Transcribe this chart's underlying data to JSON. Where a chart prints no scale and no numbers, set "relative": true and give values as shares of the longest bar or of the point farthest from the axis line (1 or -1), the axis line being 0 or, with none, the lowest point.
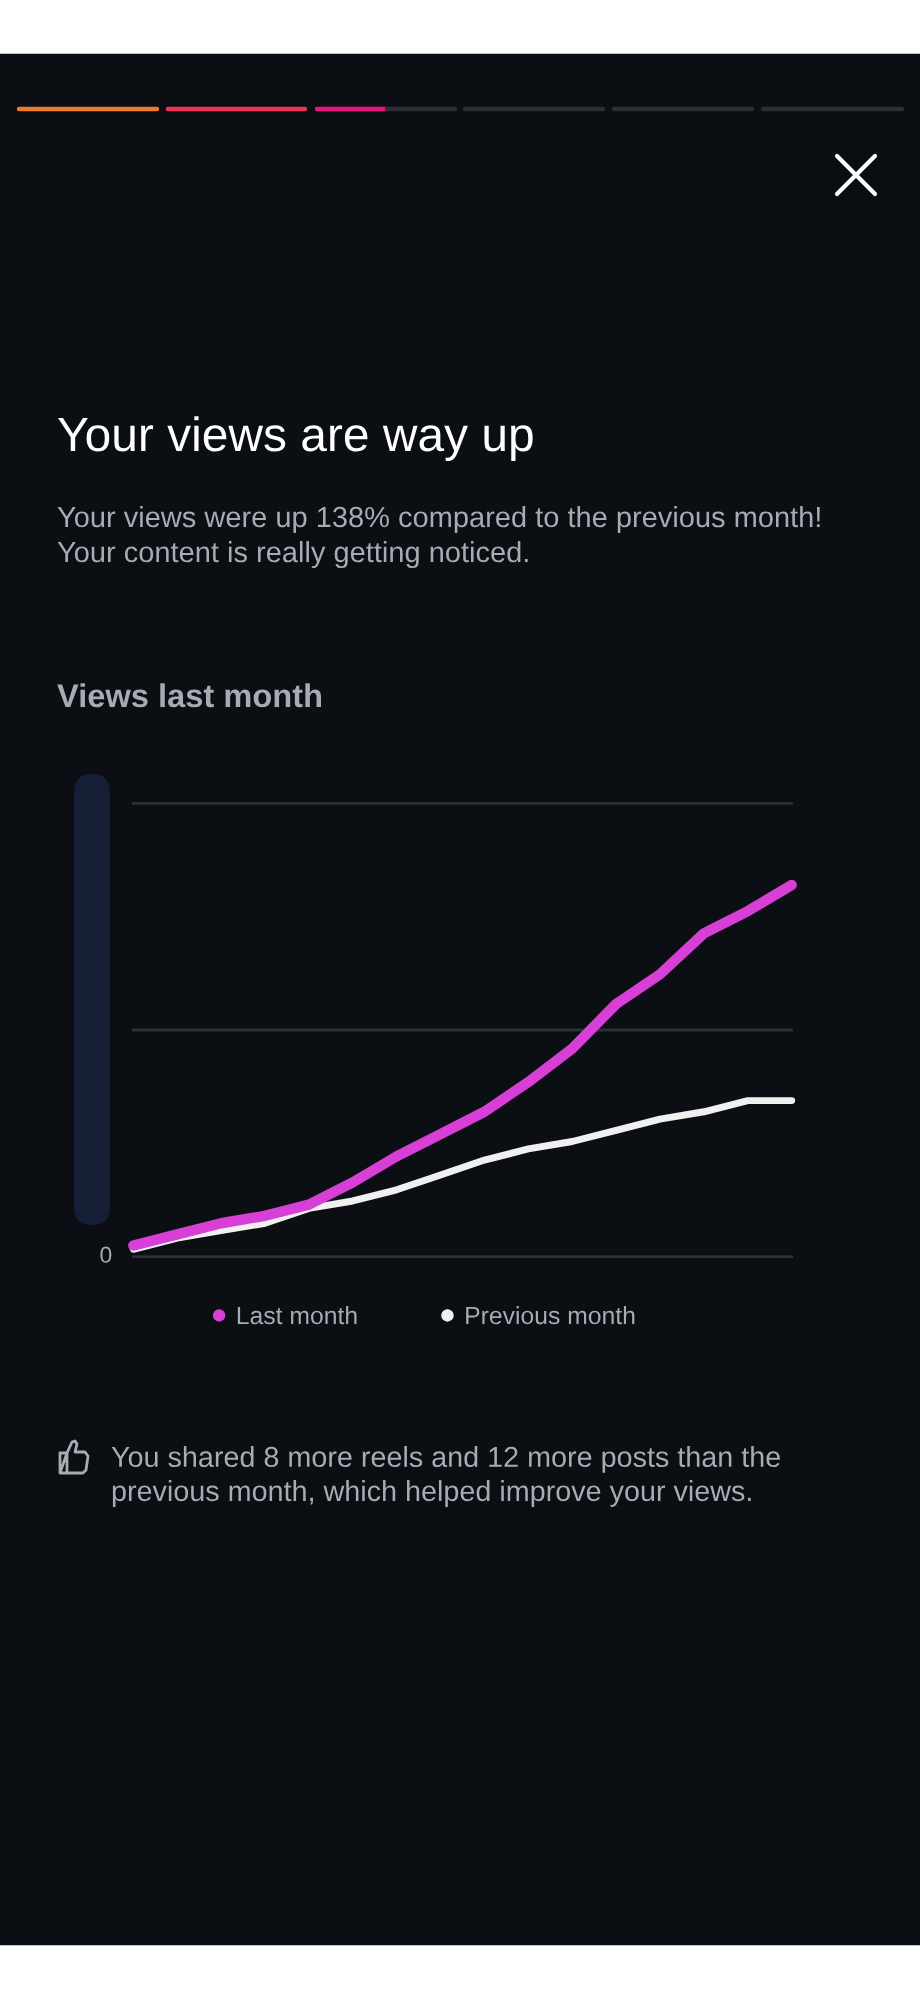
{
  "chart_data": {
    "type": "line",
    "title": "Your views are way up",
    "subtitle": "Your views were up 138% compared to the previous month!\nYour content is really getting noticed.",
    "annotations": [
      "Views last month",
      "0",
      "You shared 8 more reels and 12 more posts than the\nprevious month, which helped improve your views."
    ],
    "categories": [
      null,
      null,
      null,
      null,
      null,
      null,
      null,
      null,
      null,
      null,
      null,
      null,
      null,
      null,
      null,
      null
    ],
    "relative": true,
    "ref_lines": [
      {
        "axis": "y",
        "value": 0.61,
        "color": "#2b2f36"
      },
      {
        "axis": "y",
        "value": 1.22,
        "color": "#2b2f36"
      }
    ],
    "legend": "bottom",
    "marker": "none",
    "line_style": "solid",
    "series": [
      {
        "name": "Last month",
        "color": "#d83fd6",
        "values": [
          0.03,
          0.06,
          0.09,
          0.11,
          0.14,
          0.2,
          0.27,
          0.33,
          0.39,
          0.47,
          0.56,
          0.68,
          0.76,
          0.87,
          0.93,
          1
        ]
      },
      {
        "name": "Previous month",
        "color": "#f0f0f0",
        "values": [
          0.02,
          0.05,
          0.07,
          0.09,
          0.13,
          0.15,
          0.18,
          0.22,
          0.26,
          0.29,
          0.31,
          0.34,
          0.37,
          0.39,
          0.42,
          0.42
        ]
      }
    ]
  }
}
